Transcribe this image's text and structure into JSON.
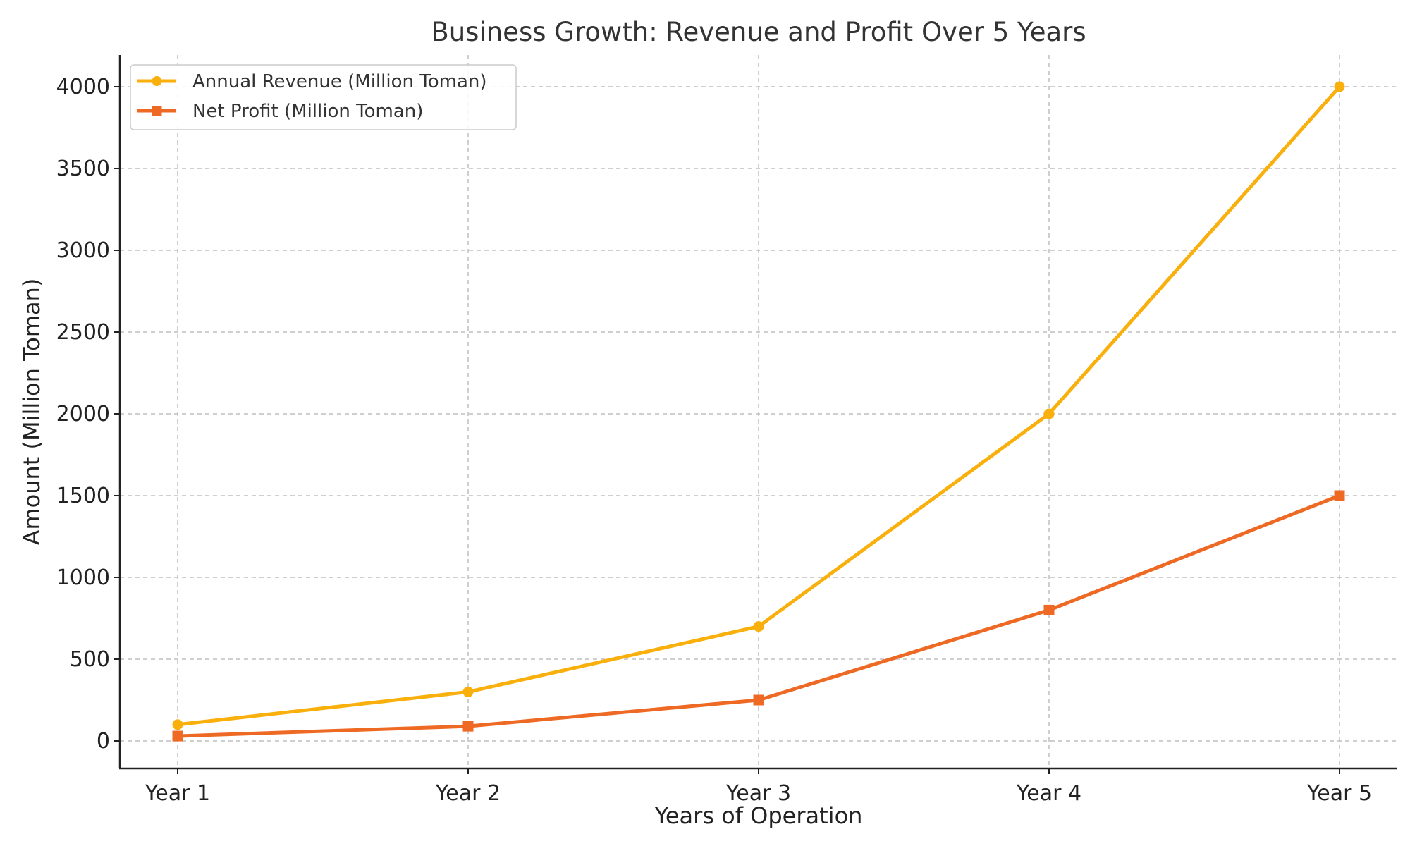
{
  "chart_data": {
    "type": "line",
    "title": "Business Growth: Revenue and Profit Over 5 Years",
    "xlabel": "Years of Operation",
    "ylabel": "Amount (Million Toman)",
    "categories": [
      "Year 1",
      "Year 2",
      "Year 3",
      "Year 4",
      "Year 5"
    ],
    "ylim": [
      -170,
      4200
    ],
    "yticks": [
      0,
      500,
      1000,
      1500,
      2000,
      2500,
      3000,
      3500,
      4000
    ],
    "grid": true,
    "legend_position": "top-left",
    "series": [
      {
        "name": "Annual Revenue (Million Toman)",
        "values": [
          100,
          300,
          700,
          2000,
          4000
        ],
        "color": "#F9AF0C",
        "marker": "circle"
      },
      {
        "name": "Net Profit (Million Toman)",
        "values": [
          30,
          90,
          250,
          800,
          1500
        ],
        "color": "#EE6A24",
        "marker": "square"
      }
    ]
  }
}
